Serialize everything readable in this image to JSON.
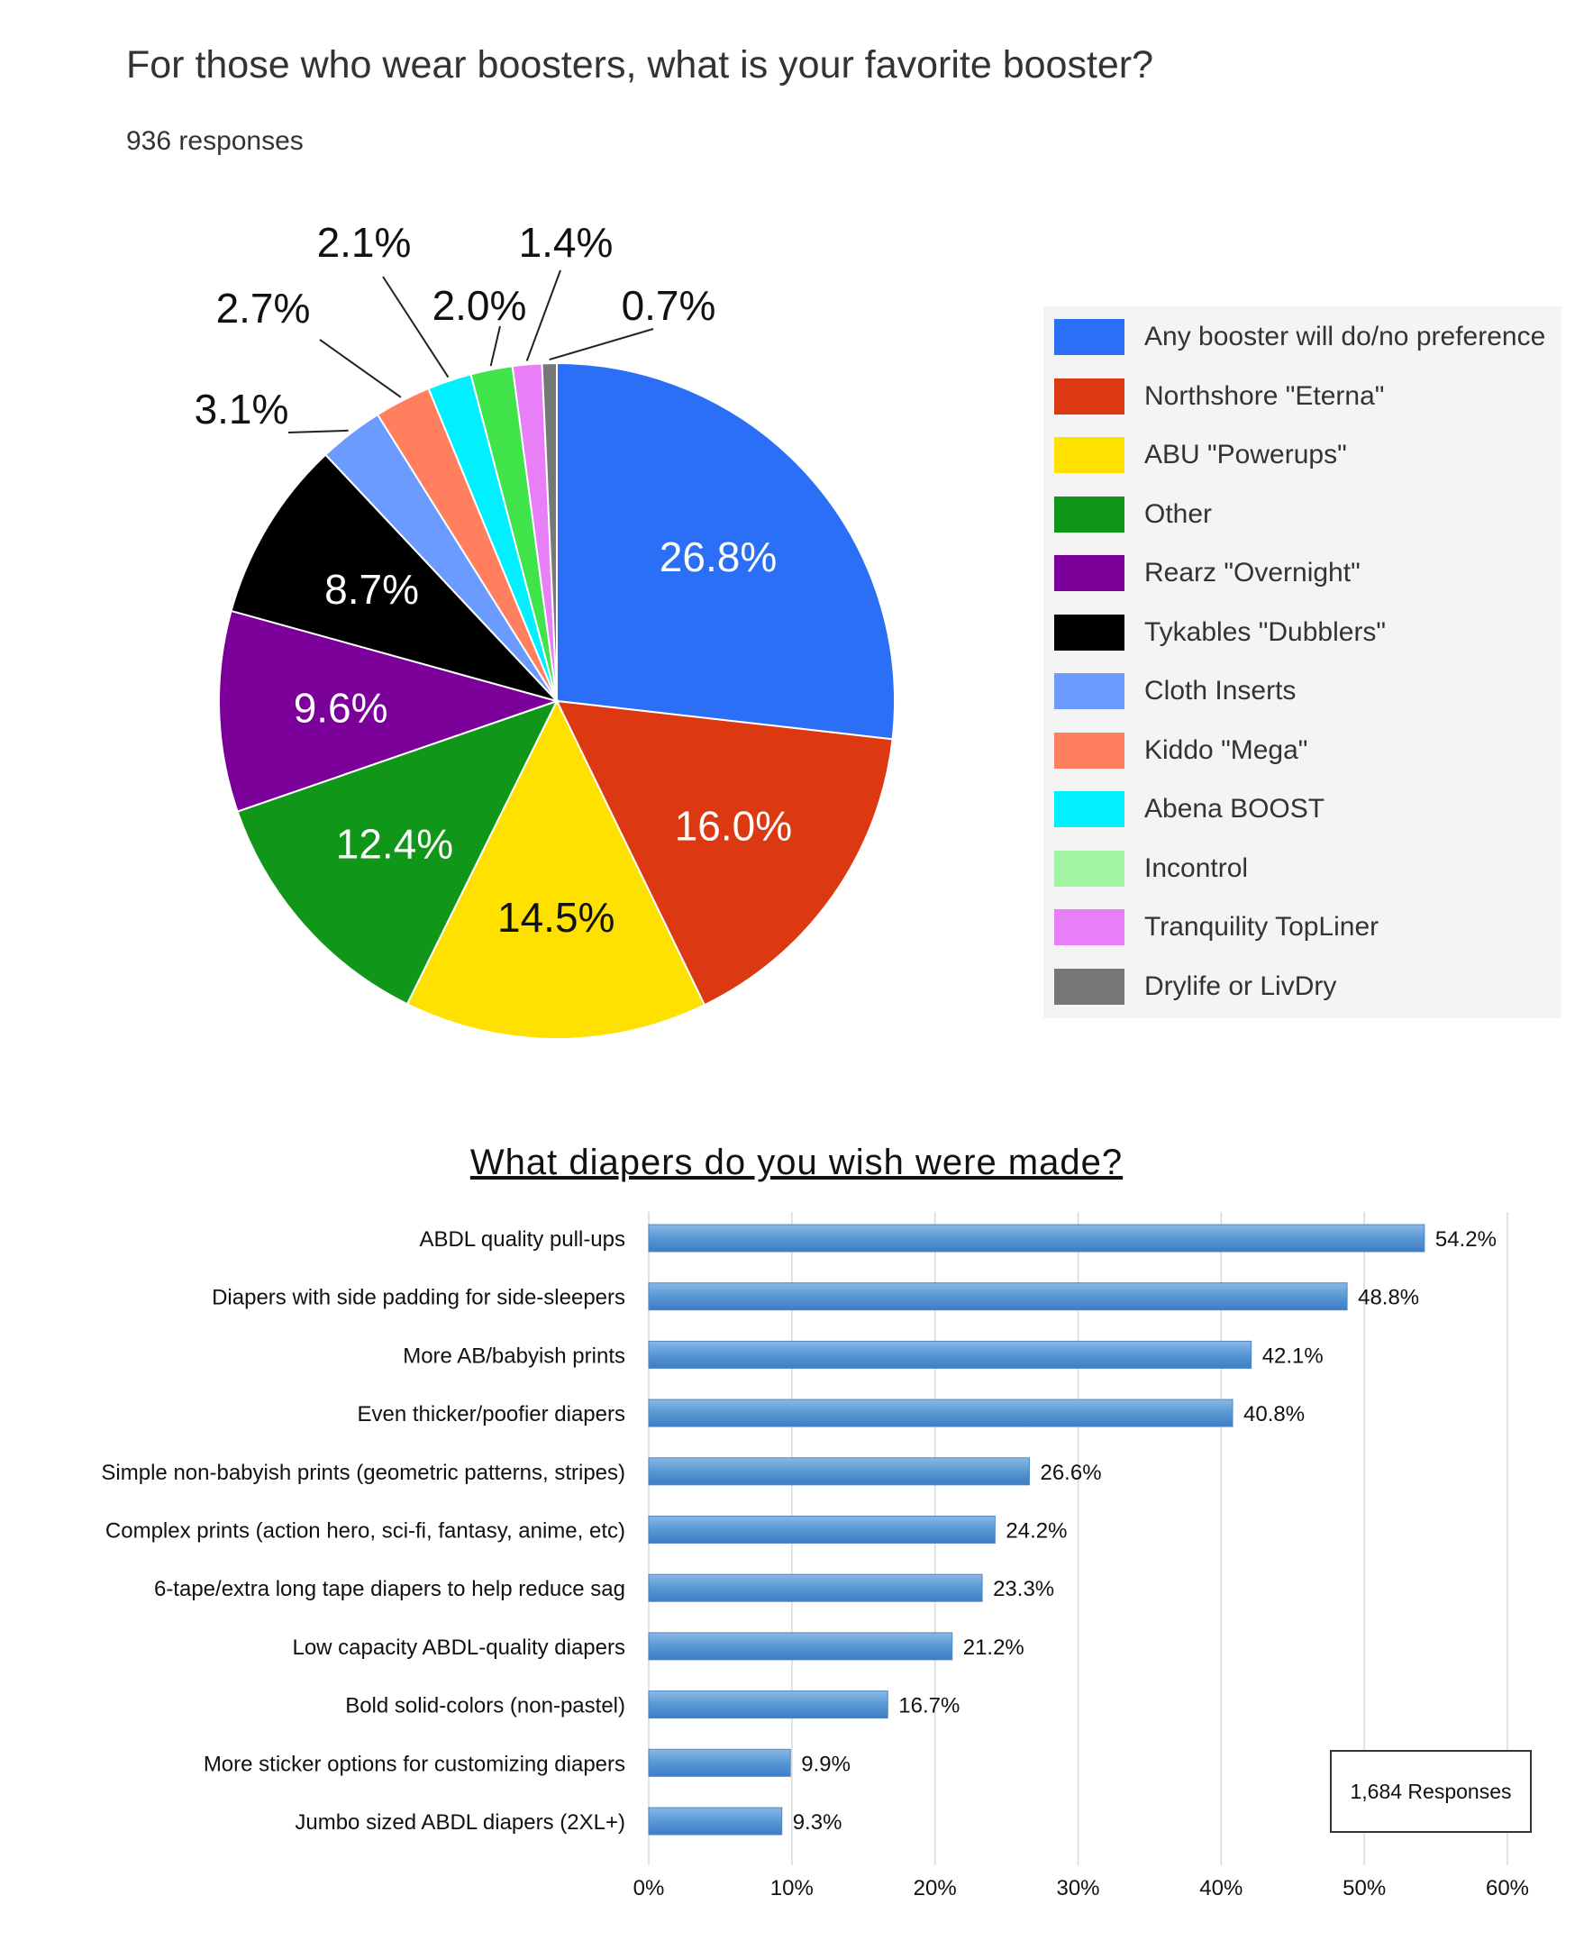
{
  "title": "For those who wear boosters, what is your favorite booster?",
  "subtitle": "936 responses",
  "chart_data": [
    {
      "type": "pie",
      "title": "For those who wear boosters, what is your favorite booster?",
      "subtitle": "936 responses",
      "legend_position": "right",
      "slices": [
        {
          "label": "Any booster will do/no preference",
          "value": 26.8,
          "color": "#2a6ff5"
        },
        {
          "label": "Northshore \"Eterna\"",
          "value": 16.0,
          "color": "#dc3912"
        },
        {
          "label": "ABU \"Powerups\"",
          "value": 14.5,
          "color": "#ffe100"
        },
        {
          "label": "Other",
          "value": 12.4,
          "color": "#109618"
        },
        {
          "label": "Rearz \"Overnight\"",
          "value": 9.6,
          "color": "#7b0099"
        },
        {
          "label": "Tykables \"Dubblers\"",
          "value": 8.7,
          "color": "#000000"
        },
        {
          "label": "Cloth Inserts",
          "value": 3.1,
          "color": "#6b9bff"
        },
        {
          "label": "Kiddo \"Mega\"",
          "value": 2.7,
          "color": "#ff7f5e"
        },
        {
          "label": "Abena BOOST",
          "value": 2.1,
          "color": "#00f0ff"
        },
        {
          "label": "Incontrol",
          "value": 2.0,
          "color": "#40e34a"
        },
        {
          "label": "Tranquility TopLiner",
          "value": 1.4,
          "color": "#e97ff7"
        },
        {
          "label": "Drylife or LivDry",
          "value": 0.7,
          "color": "#777777"
        }
      ],
      "data_labels": [
        "26.8%",
        "16.0%",
        "14.5%",
        "12.4%",
        "9.6%",
        "8.7%",
        "3.1%",
        "2.7%",
        "2.1%",
        "2.0%",
        "1.4%",
        "0.7%"
      ],
      "legend_swatch_colors": [
        "#2a6ff5",
        "#dc3912",
        "#ffe100",
        "#109618",
        "#7b0099",
        "#000000",
        "#6b9bff",
        "#ff7f5e",
        "#00f0ff",
        "#a3f5a3",
        "#e97ff7",
        "#777777"
      ]
    },
    {
      "type": "bar",
      "orientation": "horizontal",
      "title": "What diapers do you wish were made?",
      "categories": [
        "ABDL quality pull-ups",
        "Diapers with side padding for side-sleepers",
        "More AB/babyish prints",
        "Even thicker/poofier diapers",
        "Simple non-babyish prints (geometric patterns, stripes)",
        "Complex prints (action hero, sci-fi, fantasy, anime, etc)",
        "6-tape/extra long tape diapers to help reduce sag",
        "Low capacity ABDL-quality diapers",
        "Bold solid-colors (non-pastel)",
        "More sticker options for customizing diapers",
        "Jumbo sized ABDL diapers (2XL+)"
      ],
      "values": [
        54.2,
        48.8,
        42.1,
        40.8,
        26.6,
        24.2,
        23.3,
        21.2,
        16.7,
        9.9,
        9.3
      ],
      "data_labels": [
        "54.2%",
        "48.8%",
        "42.1%",
        "40.8%",
        "26.6%",
        "24.2%",
        "23.3%",
        "21.2%",
        "16.7%",
        "9.9%",
        "9.3%"
      ],
      "xlim": [
        0,
        60
      ],
      "xticks": [
        "0%",
        "10%",
        "20%",
        "30%",
        "40%",
        "50%",
        "60%"
      ],
      "grid": true,
      "bar_color": "#5b9bd5",
      "annotation": "1,684 Responses"
    }
  ]
}
